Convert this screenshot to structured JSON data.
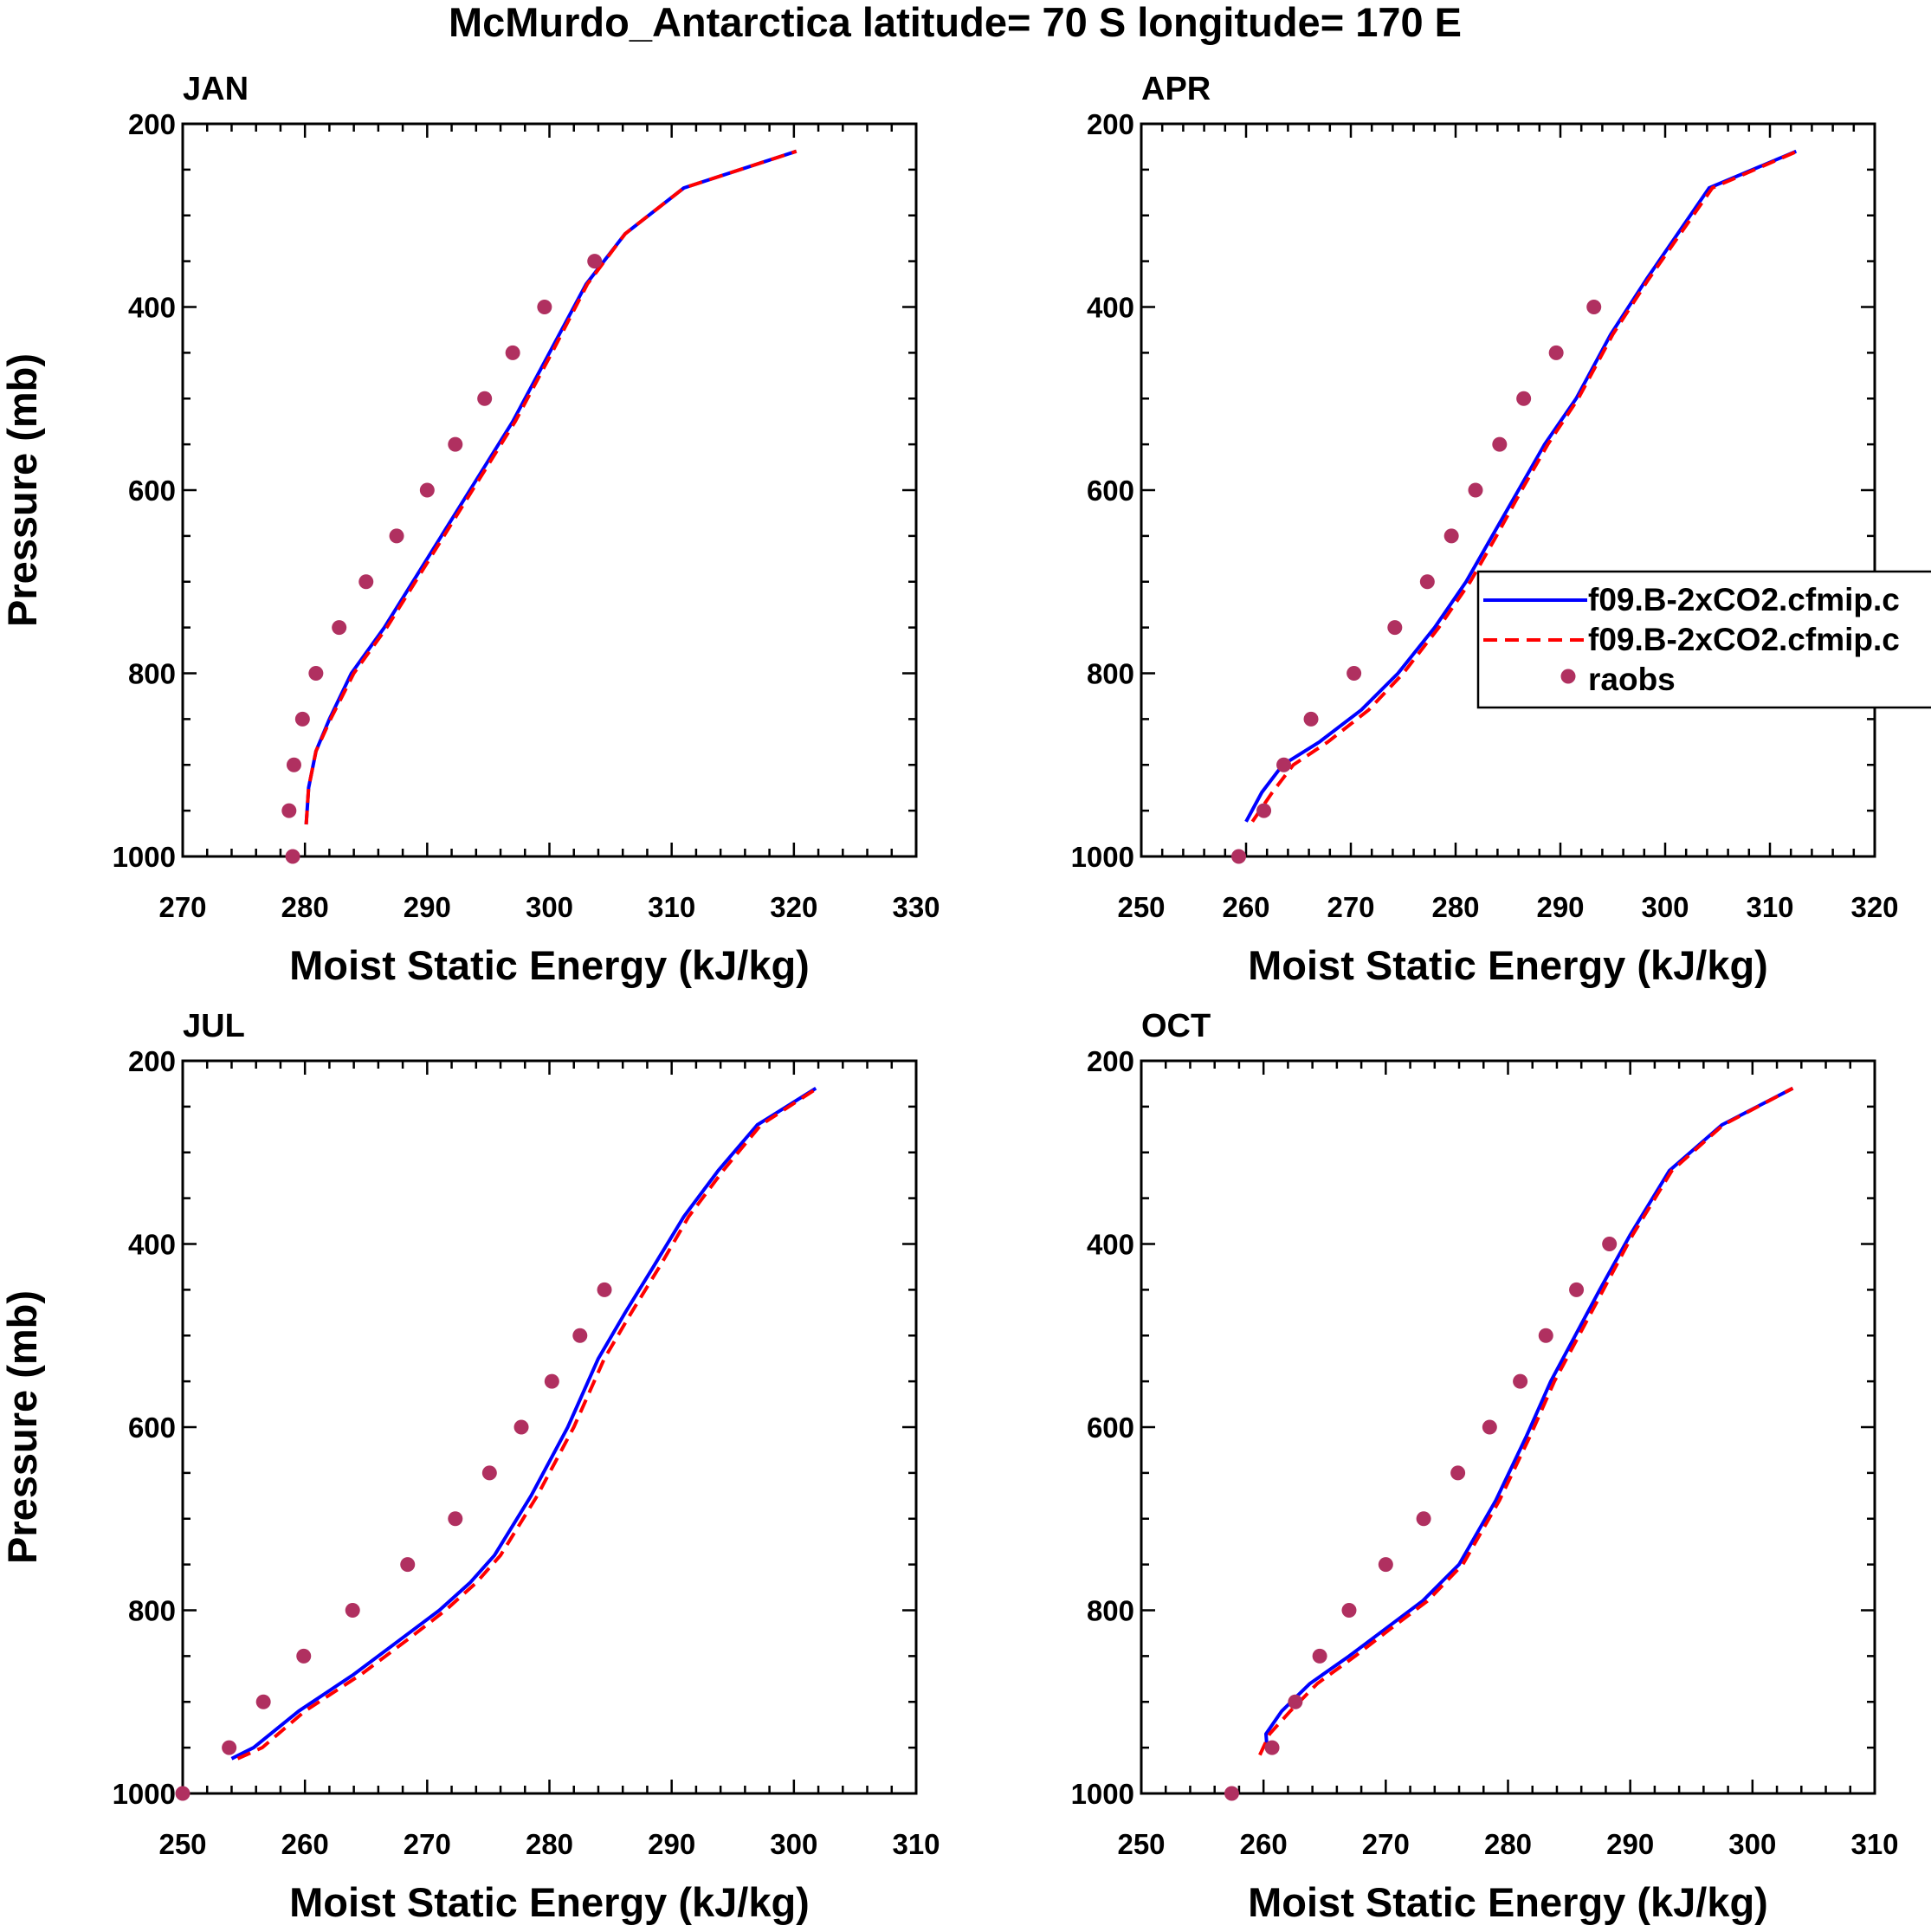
{
  "title": "McMurdo_Antarctica  latitude= 70 S longitude= 170 E",
  "colors": {
    "model_a": "#0000ff",
    "model_b": "#ff0000",
    "obs": "#b03060",
    "axes": "#000000"
  },
  "legend": {
    "entries": [
      {
        "label": "f09.B-2xCO2.cfmip.c",
        "style": "solid",
        "color": "#0000ff"
      },
      {
        "label": "f09.B-2xCO2.cfmip.c",
        "style": "dashed",
        "color": "#ff0000"
      },
      {
        "label": "raobs",
        "style": "dot",
        "color": "#b03060"
      }
    ]
  },
  "chart_data": [
    {
      "type": "line",
      "panel": "JAN",
      "title": "JAN",
      "xlabel": "Moist Static Energy (kJ/kg)",
      "ylabel": "Pressure (mb)",
      "xlim": [
        270,
        330
      ],
      "ylim": [
        1000,
        200
      ],
      "xticks": [
        270,
        280,
        290,
        300,
        310,
        320,
        330
      ],
      "yticks": [
        200,
        400,
        600,
        800,
        1000
      ],
      "series": [
        {
          "name": "f09.B-2xCO2.cfmip.c",
          "style": "solid",
          "x": [
            280.1,
            280.3,
            280.9,
            282.0,
            283.8,
            286.5,
            290.0,
            293.5,
            297.0,
            300.0,
            303.0,
            306.2,
            311.0,
            320.2
          ],
          "y": [
            965,
            925,
            885,
            850,
            800,
            750,
            675,
            600,
            525,
            450,
            375,
            320,
            270,
            230
          ]
        },
        {
          "name": "f09.B-2xCO2.cfmip.c",
          "style": "dashed",
          "x": [
            280.1,
            280.3,
            280.9,
            282.1,
            284.0,
            286.7,
            290.2,
            293.7,
            297.2,
            300.2,
            303.1,
            306.2,
            311.0,
            320.2
          ],
          "y": [
            965,
            925,
            885,
            850,
            800,
            750,
            675,
            600,
            525,
            450,
            375,
            320,
            270,
            230
          ]
        },
        {
          "name": "raobs",
          "style": "dot",
          "x": [
            279.0,
            278.7,
            279.1,
            279.8,
            280.9,
            282.8,
            285.0,
            287.5,
            290.0,
            292.3,
            294.7,
            297.0,
            299.6,
            303.7
          ],
          "y": [
            1000,
            950,
            900,
            850,
            800,
            750,
            700,
            650,
            600,
            550,
            500,
            450,
            400,
            350
          ]
        }
      ]
    },
    {
      "type": "line",
      "panel": "APR",
      "title": "APR",
      "xlabel": "Moist Static Energy (kJ/kg)",
      "ylabel": "Pressure (mb)",
      "xlim": [
        250,
        320
      ],
      "ylim": [
        1000,
        200
      ],
      "xticks": [
        250,
        260,
        270,
        280,
        290,
        300,
        310,
        320
      ],
      "yticks": [
        200,
        400,
        600,
        800,
        1000
      ],
      "series": [
        {
          "name": "f09.B-2xCO2.cfmip.c",
          "style": "solid",
          "x": [
            260.0,
            261.5,
            263.5,
            267.0,
            271.0,
            274.5,
            278.0,
            281.0,
            283.5,
            286.0,
            288.5,
            291.5,
            294.8,
            298.2,
            304.2,
            312.5
          ],
          "y": [
            962,
            930,
            900,
            875,
            840,
            800,
            750,
            700,
            650,
            600,
            550,
            500,
            430,
            370,
            270,
            230
          ]
        },
        {
          "name": "f09.B-2xCO2.cfmip.c",
          "style": "dashed",
          "x": [
            260.6,
            262.5,
            264.5,
            267.8,
            271.7,
            275.0,
            278.4,
            281.4,
            283.9,
            286.3,
            288.8,
            291.7,
            295.0,
            298.4,
            304.5,
            312.6
          ],
          "y": [
            962,
            930,
            900,
            875,
            840,
            800,
            750,
            700,
            650,
            600,
            550,
            500,
            430,
            370,
            270,
            230
          ]
        },
        {
          "name": "raobs",
          "style": "dot",
          "x": [
            259.3,
            261.7,
            263.6,
            266.2,
            270.3,
            274.2,
            277.3,
            279.6,
            281.9,
            284.2,
            286.5,
            289.6,
            293.2
          ],
          "y": [
            1000,
            950,
            900,
            850,
            800,
            750,
            700,
            650,
            600,
            550,
            500,
            450,
            400
          ]
        }
      ]
    },
    {
      "type": "line",
      "panel": "JUL",
      "title": "JUL",
      "xlabel": "Moist Static Energy (kJ/kg)",
      "ylabel": "Pressure (mb)",
      "xlim": [
        250,
        310
      ],
      "ylim": [
        1000,
        200
      ],
      "xticks": [
        250,
        260,
        270,
        280,
        290,
        300,
        310
      ],
      "yticks": [
        200,
        400,
        600,
        800,
        1000
      ],
      "series": [
        {
          "name": "f09.B-2xCO2.cfmip.c",
          "style": "solid",
          "x": [
            254.0,
            255.8,
            259.5,
            264.0,
            268.0,
            271.0,
            273.5,
            275.5,
            278.5,
            281.5,
            284.0,
            286.2,
            288.5,
            291.0,
            293.8,
            297.0,
            301.8
          ],
          "y": [
            962,
            950,
            910,
            870,
            830,
            800,
            770,
            740,
            675,
            600,
            525,
            475,
            425,
            370,
            320,
            270,
            230
          ]
        },
        {
          "name": "f09.B-2xCO2.cfmip.c",
          "style": "dashed",
          "x": [
            254.5,
            256.5,
            260.0,
            264.6,
            268.6,
            271.5,
            274.0,
            276.0,
            279.0,
            282.0,
            284.5,
            286.7,
            289.0,
            291.4,
            294.2,
            297.3,
            301.9
          ],
          "y": [
            962,
            950,
            910,
            870,
            830,
            800,
            770,
            740,
            675,
            600,
            525,
            475,
            425,
            370,
            320,
            270,
            230
          ]
        },
        {
          "name": "raobs",
          "style": "dot",
          "x": [
            250.0,
            253.8,
            256.6,
            259.9,
            263.9,
            268.4,
            272.3,
            275.1,
            277.7,
            280.2,
            282.5,
            284.5
          ],
          "y": [
            1000,
            950,
            900,
            850,
            800,
            750,
            700,
            650,
            600,
            550,
            500,
            450
          ]
        }
      ]
    },
    {
      "type": "line",
      "panel": "OCT",
      "title": "OCT",
      "xlabel": "Moist Static Energy (kJ/kg)",
      "ylabel": "Pressure (mb)",
      "xlim": [
        250,
        310
      ],
      "ylim": [
        1000,
        200
      ],
      "xticks": [
        250,
        260,
        270,
        280,
        290,
        300,
        310
      ],
      "yticks": [
        200,
        400,
        600,
        800,
        1000
      ],
      "series": [
        {
          "name": "f09.B-2xCO2.cfmip.c",
          "style": "solid",
          "x": [
            260.3,
            260.2,
            261.5,
            263.8,
            267.0,
            270.0,
            273.0,
            276.0,
            279.0,
            281.5,
            283.5,
            285.5,
            287.5,
            290.0,
            293.2,
            297.5,
            303.3
          ],
          "y": [
            952,
            935,
            910,
            880,
            850,
            820,
            790,
            750,
            680,
            610,
            550,
            500,
            450,
            390,
            320,
            270,
            230
          ]
        },
        {
          "name": "f09.B-2xCO2.cfmip.c",
          "style": "dashed",
          "x": [
            259.7,
            260.5,
            262.2,
            264.4,
            267.5,
            270.4,
            273.4,
            276.3,
            279.3,
            281.8,
            283.8,
            285.8,
            287.8,
            290.2,
            293.4,
            297.6,
            303.3
          ],
          "y": [
            958,
            935,
            910,
            880,
            850,
            820,
            790,
            750,
            680,
            610,
            550,
            500,
            450,
            390,
            320,
            270,
            230
          ]
        },
        {
          "name": "raobs",
          "style": "dot",
          "x": [
            257.4,
            260.7,
            262.6,
            264.6,
            267.0,
            270.0,
            273.1,
            275.9,
            278.5,
            281.0,
            283.1,
            285.6,
            288.3
          ],
          "y": [
            1000,
            950,
            900,
            850,
            800,
            750,
            700,
            650,
            600,
            550,
            500,
            450,
            400
          ]
        }
      ]
    }
  ]
}
